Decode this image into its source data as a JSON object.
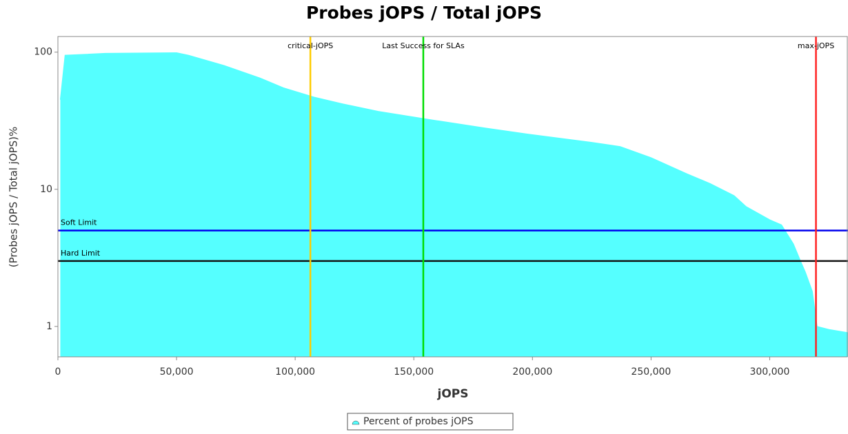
{
  "chart_data": {
    "type": "area",
    "title": "Probes jOPS / Total jOPS",
    "x_label": "jOPS",
    "y_label": "(Probes jOPS / Total jOPS)%",
    "log_y": true,
    "xlim": [
      0,
      333000
    ],
    "ylim": [
      0.6,
      130
    ],
    "xticks": [
      0,
      {
        "value": 50000,
        "label": "50,000"
      },
      {
        "value": 100000,
        "label": "100,000"
      },
      {
        "value": 150000,
        "label": "150,000"
      },
      {
        "value": 200000,
        "label": "200,000"
      },
      {
        "value": 250000,
        "label": "250,000"
      },
      {
        "value": 300000,
        "label": "300,000"
      }
    ],
    "yticks": [
      1,
      10,
      100
    ],
    "series": [
      {
        "name": "Percent of probes jOPS",
        "color": "#55ffff",
        "x": [
          1000,
          3000,
          20000,
          50000,
          55000,
          70000,
          85000,
          95000,
          108000,
          120000,
          135000,
          158000,
          180000,
          200000,
          225000,
          237000,
          250000,
          265000,
          275000,
          285000,
          290000,
          300000,
          305000,
          310000,
          313000,
          315000,
          318000,
          320000,
          325000,
          333000
        ],
        "values": [
          45,
          95,
          98,
          99,
          95,
          80,
          65,
          55,
          47,
          42,
          37,
          32,
          28,
          25,
          22,
          20.5,
          17,
          13,
          11,
          9,
          7.5,
          6,
          5.5,
          4,
          3,
          2.5,
          1.8,
          1.0,
          0.95,
          0.9
        ]
      }
    ],
    "vlines": [
      {
        "label": "critical-jOPS",
        "value": 106400,
        "color": "#ffcc00"
      },
      {
        "label": "Last Success for SLAs",
        "value": 154000,
        "color": "#00dd00"
      },
      {
        "label": "max-jOPS",
        "value": 319500,
        "color": "#ff2222"
      }
    ],
    "hlines": [
      {
        "label": "Soft Limit",
        "value": 5,
        "color": "#0000ee"
      },
      {
        "label": "Hard Limit",
        "value": 3,
        "color": "#111111"
      }
    ]
  }
}
